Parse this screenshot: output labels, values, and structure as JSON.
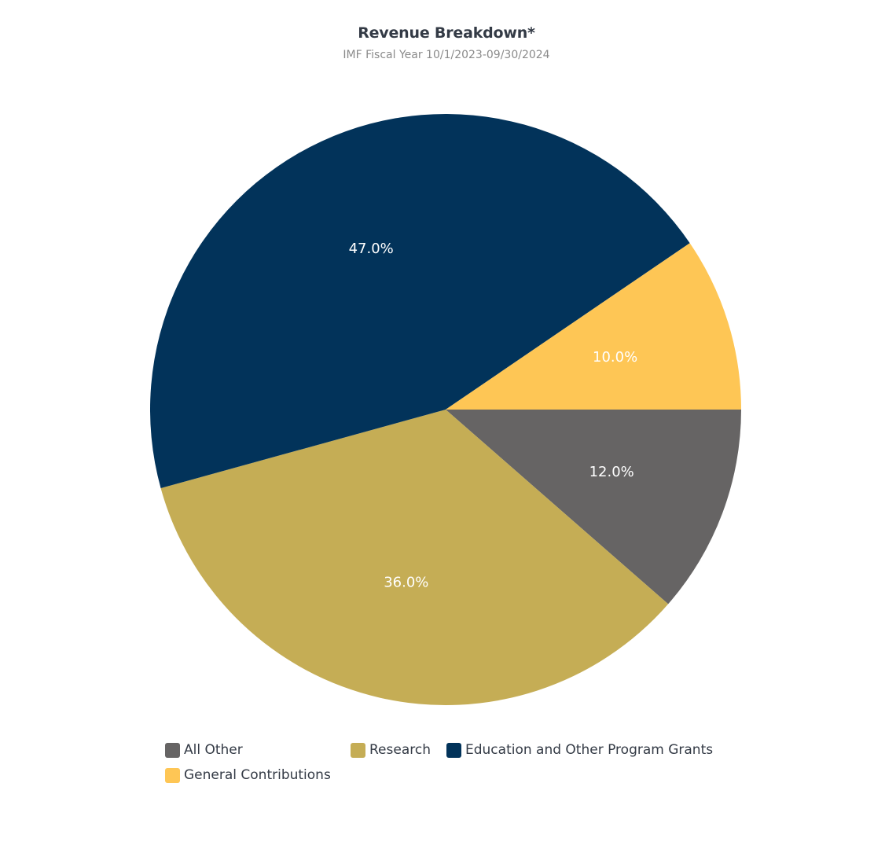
{
  "chart_data": {
    "type": "pie",
    "title": "Revenue Breakdown*",
    "subtitle": "IMF Fiscal Year 10/1/2023-09/30/2024",
    "slices": [
      {
        "label": "All Other",
        "value": 12.0,
        "display": "12.0%",
        "color": "#666464"
      },
      {
        "label": "Research",
        "value": 36.0,
        "display": "36.0%",
        "color": "#c5ad55"
      },
      {
        "label": "Education and Other Program Grants",
        "value": 47.0,
        "display": "47.0%",
        "color": "#02335a"
      },
      {
        "label": "General Contributions",
        "value": 10.0,
        "display": "10.0%",
        "color": "#fec655"
      }
    ],
    "start_angle_deg": 90,
    "direction": "clockwise",
    "legend_position": "bottom"
  }
}
